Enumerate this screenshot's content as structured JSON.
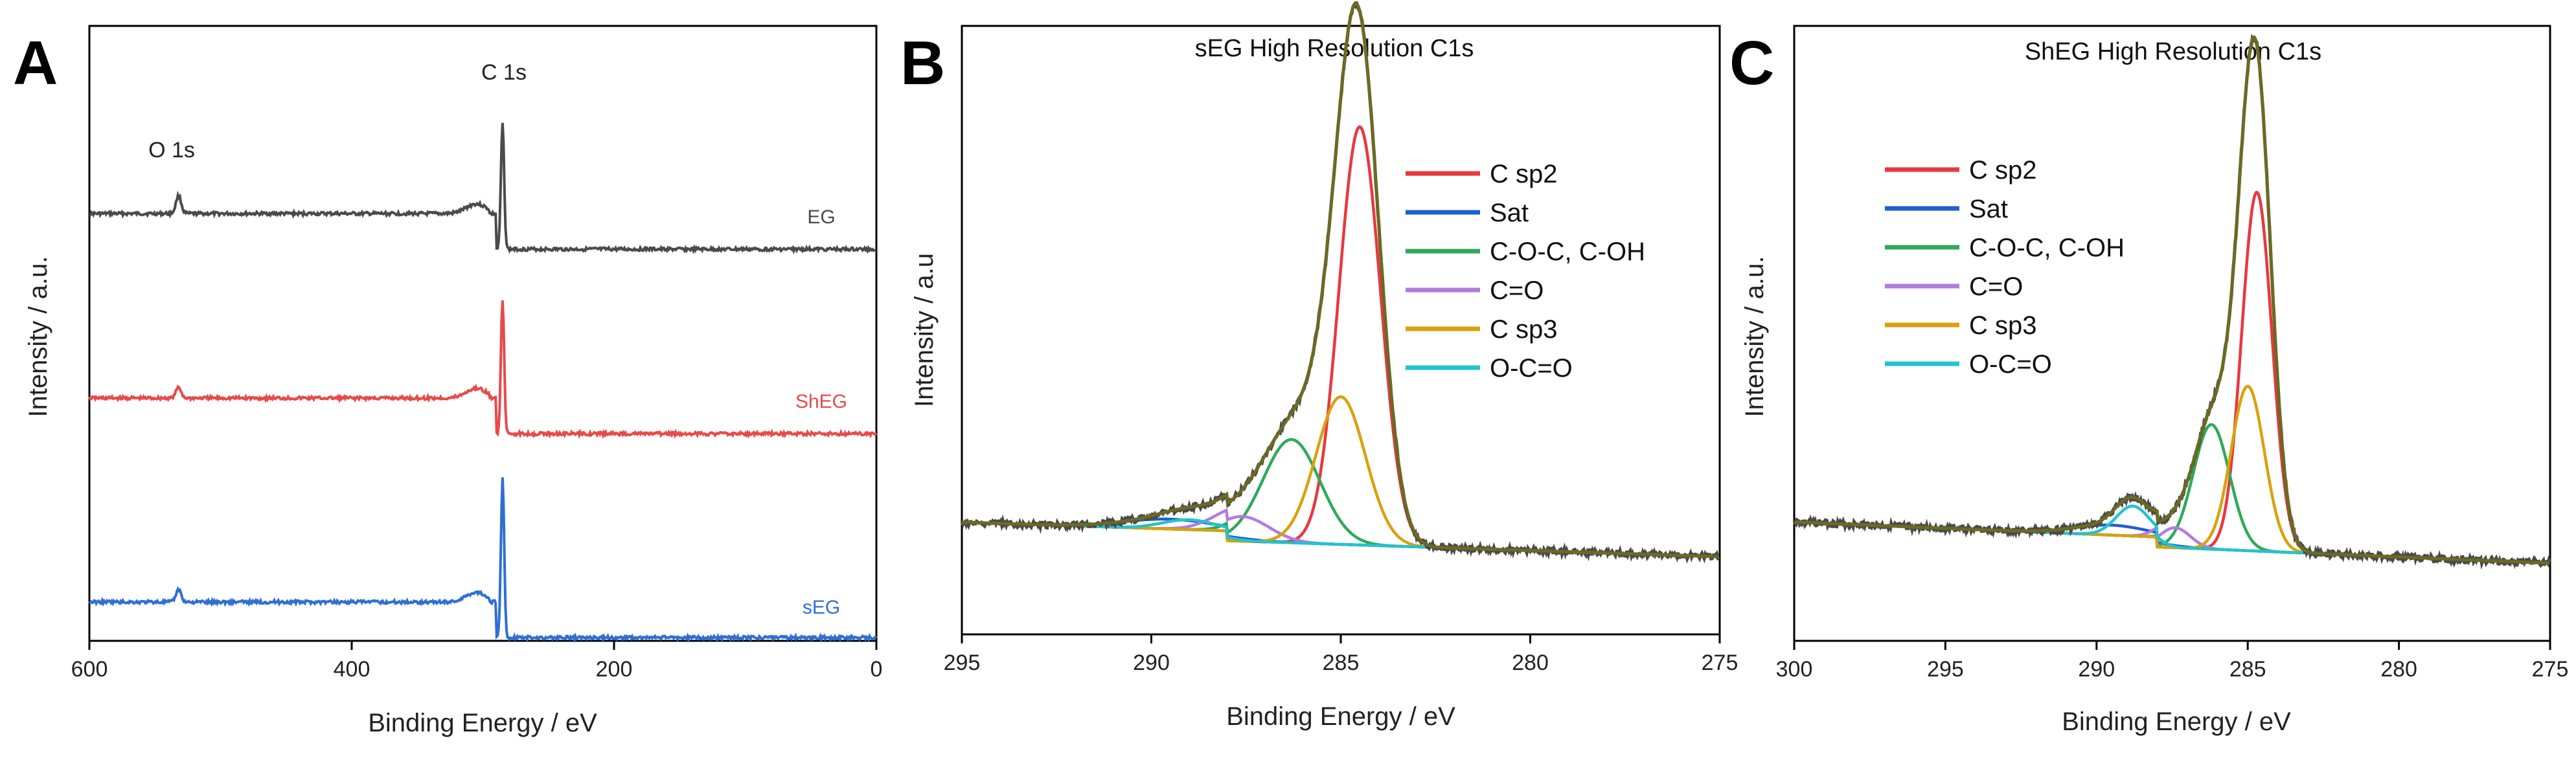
{
  "figure": {
    "panels": [
      "A",
      "B",
      "C"
    ]
  },
  "colors": {
    "EG": "#4a4a4a",
    "ShEG": "#e84a4a",
    "sEG": "#2f6fd4",
    "csp2": "#e8383f",
    "sat": "#1f5fcf",
    "coc": "#2faa5a",
    "co": "#b27be0",
    "csp3": "#d9a10d",
    "oco": "#22c3cc",
    "envelope": "#6b6a22",
    "data": "#4a4a4a",
    "baseline": "#7a4a4a"
  },
  "chart_data": [
    {
      "panel": "A",
      "type": "line",
      "title": "",
      "xlabel": "Binding Energy / eV",
      "ylabel": "Intensity / a.u.",
      "xlim": [
        600,
        0
      ],
      "xticks": [
        "600",
        "400",
        "200",
        "0"
      ],
      "series": [
        {
          "name": "EG",
          "label": "EG",
          "peaks": [
            {
              "x": 532,
              "height": 0.5
            },
            {
              "x": 285,
              "height": 1.5
            }
          ]
        },
        {
          "name": "ShEG",
          "label": "ShEG",
          "peaks": [
            {
              "x": 532,
              "height": 0.3
            },
            {
              "x": 285,
              "height": 1.6
            }
          ]
        },
        {
          "name": "sEG",
          "label": "sEG",
          "peaks": [
            {
              "x": 532,
              "height": 0.35
            },
            {
              "x": 285,
              "height": 1.9
            }
          ]
        }
      ],
      "annotations": [
        {
          "text": "O 1s",
          "x": 532
        },
        {
          "text": "C 1s",
          "x": 285
        }
      ]
    },
    {
      "panel": "B",
      "type": "line",
      "title": "sEG High Resolution C1s",
      "xlabel": "Binding Energy / eV",
      "ylabel": "Intensity / a.u",
      "xlim": [
        295,
        275
      ],
      "xticks": [
        "295",
        "290",
        "285",
        "280",
        "275"
      ],
      "components": [
        {
          "name": "C sp2",
          "center": 284.5,
          "amplitude": 0.85,
          "width": 0.55
        },
        {
          "name": "Sat",
          "center": 289.5,
          "amplitude": 0.02,
          "width": 1.2
        },
        {
          "name": "C-O-C, C-OH",
          "center": 286.3,
          "amplitude": 0.21,
          "width": 0.75
        },
        {
          "name": "C=O",
          "center": 287.6,
          "amplitude": 0.05,
          "width": 0.7
        },
        {
          "name": "C sp3",
          "center": 285.0,
          "amplitude": 0.3,
          "width": 0.65
        },
        {
          "name": "O-C=O",
          "center": 289.0,
          "amplitude": 0.02,
          "width": 0.7
        }
      ],
      "legend": [
        "C sp2",
        "Sat",
        "C-O-C, C-OH",
        "C=O",
        "C sp3",
        "O-C=O"
      ]
    },
    {
      "panel": "C",
      "type": "line",
      "title": "ShEG High Resolution C1s",
      "xlabel": "Binding Energy / eV",
      "ylabel": "Intensity / a.u.",
      "xlim": [
        300,
        275
      ],
      "xticks": [
        "300",
        "295",
        "290",
        "285",
        "280",
        "275"
      ],
      "components": [
        {
          "name": "C sp2",
          "center": 284.7,
          "amplitude": 0.72,
          "width": 0.5
        },
        {
          "name": "Sat",
          "center": 289.5,
          "amplitude": 0.02,
          "width": 1.2
        },
        {
          "name": "C-O-C, C-OH",
          "center": 286.2,
          "amplitude": 0.25,
          "width": 0.6
        },
        {
          "name": "C=O",
          "center": 287.4,
          "amplitude": 0.04,
          "width": 0.5
        },
        {
          "name": "C sp3",
          "center": 285.0,
          "amplitude": 0.33,
          "width": 0.55
        },
        {
          "name": "O-C=O",
          "center": 288.8,
          "amplitude": 0.06,
          "width": 0.55
        }
      ],
      "legend": [
        "C sp2",
        "Sat",
        "C-O-C, C-OH",
        "C=O",
        "C sp3",
        "O-C=O"
      ]
    }
  ]
}
